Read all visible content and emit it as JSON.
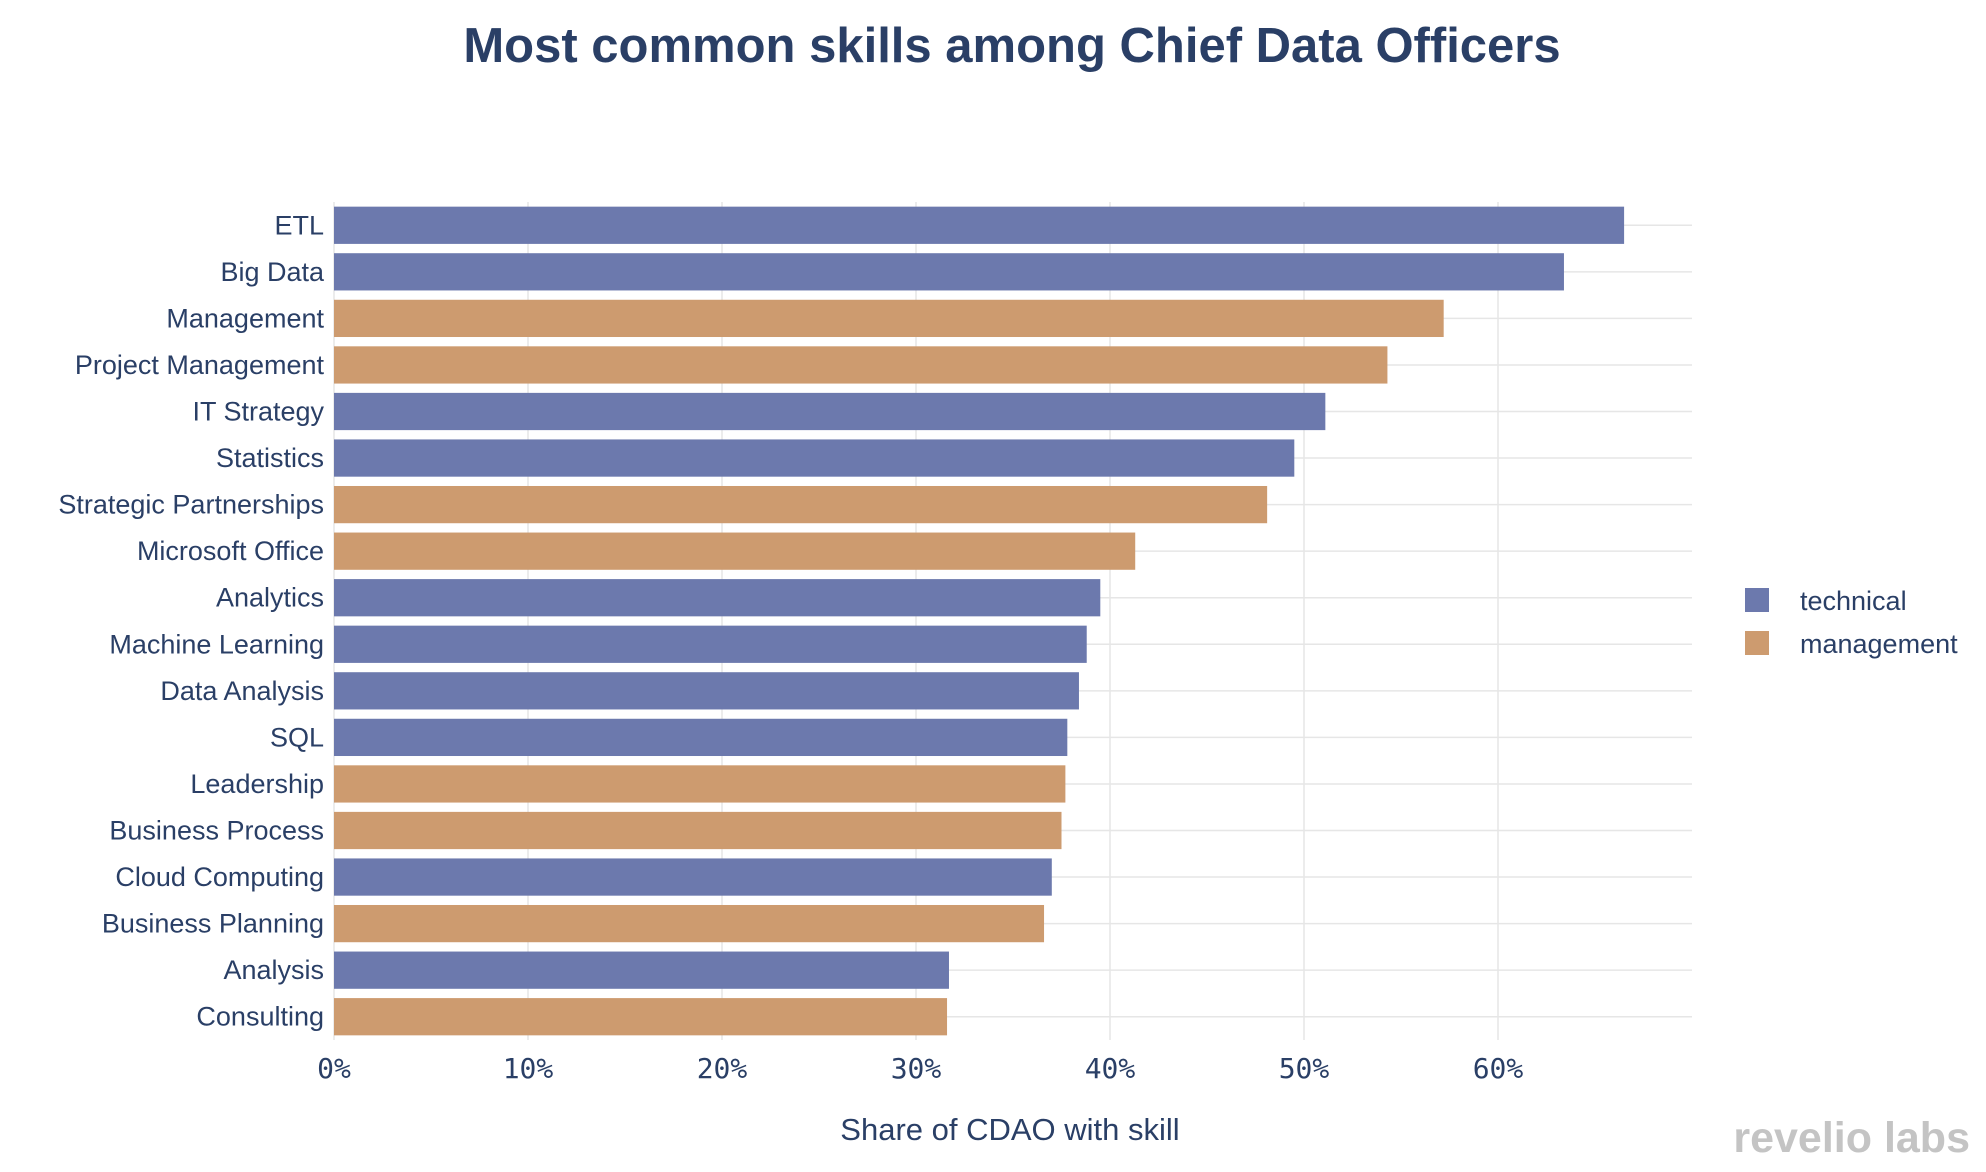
{
  "chart_data": {
    "type": "bar",
    "orientation": "horizontal",
    "title": "Most common skills among Chief Data Officers",
    "xlabel": "Share of CDAO with skill",
    "ylabel": "",
    "xlim": [
      0,
      70
    ],
    "xticks": [
      0,
      10,
      20,
      30,
      40,
      50,
      60
    ],
    "xtick_labels": [
      "0%",
      "10%",
      "20%",
      "30%",
      "40%",
      "50%",
      "60%"
    ],
    "grid": true,
    "legend_position": "right",
    "series": [
      {
        "name": "technical",
        "color": "#6c79ad"
      },
      {
        "name": "management",
        "color": "#cd9b6f"
      }
    ],
    "bars": [
      {
        "label": "ETL",
        "value": 66.5,
        "series": "technical"
      },
      {
        "label": "Big Data",
        "value": 63.4,
        "series": "technical"
      },
      {
        "label": "Management",
        "value": 57.2,
        "series": "management"
      },
      {
        "label": "Project Management",
        "value": 54.3,
        "series": "management"
      },
      {
        "label": "IT Strategy",
        "value": 51.1,
        "series": "technical"
      },
      {
        "label": "Statistics",
        "value": 49.5,
        "series": "technical"
      },
      {
        "label": "Strategic Partnerships",
        "value": 48.1,
        "series": "management"
      },
      {
        "label": "Microsoft Office",
        "value": 41.3,
        "series": "management"
      },
      {
        "label": "Analytics",
        "value": 39.5,
        "series": "technical"
      },
      {
        "label": "Machine Learning",
        "value": 38.8,
        "series": "technical"
      },
      {
        "label": "Data Analysis",
        "value": 38.4,
        "series": "technical"
      },
      {
        "label": "SQL",
        "value": 37.8,
        "series": "technical"
      },
      {
        "label": "Leadership",
        "value": 37.7,
        "series": "management"
      },
      {
        "label": "Business Process",
        "value": 37.5,
        "series": "management"
      },
      {
        "label": "Cloud Computing",
        "value": 37.0,
        "series": "technical"
      },
      {
        "label": "Business Planning",
        "value": 36.6,
        "series": "management"
      },
      {
        "label": "Analysis",
        "value": 31.7,
        "series": "technical"
      },
      {
        "label": "Consulting",
        "value": 31.6,
        "series": "management"
      }
    ]
  },
  "branding": {
    "logo_text": "revelio labs"
  }
}
